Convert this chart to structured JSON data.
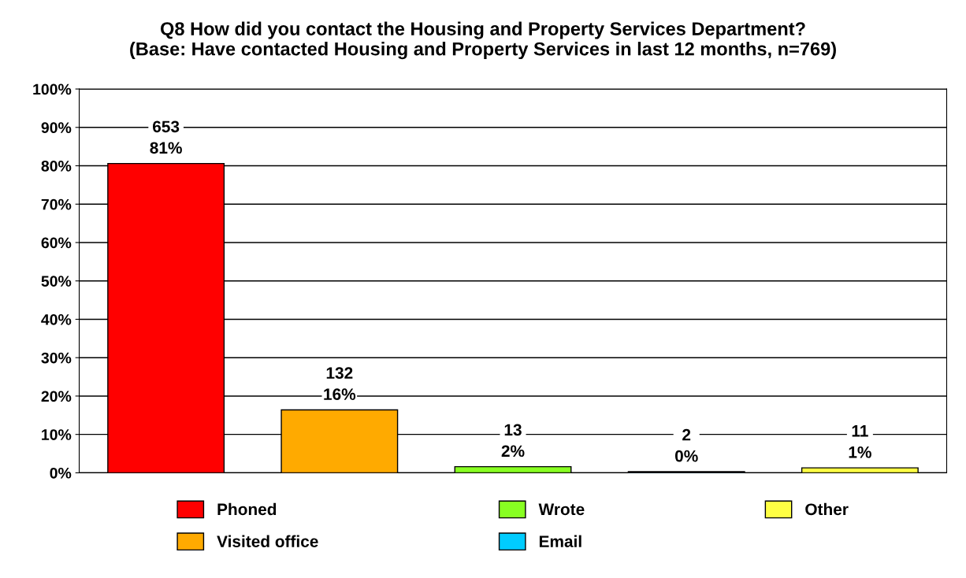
{
  "chart_data": {
    "type": "bar",
    "title": "Q8 How did you contact the Housing and Property Services Department?\n(Base: Have contacted Housing and Property Services in last 12 months, n=769)",
    "categories": [
      null,
      null,
      null,
      null,
      null
    ],
    "series": [
      {
        "name": "Phoned",
        "color": "#ff0000",
        "values": [
          80.6,
          null,
          null,
          null,
          null
        ],
        "value_labels": [
          "653\n81%",
          null,
          null,
          null,
          null
        ]
      },
      {
        "name": "Visited office",
        "color": "#ffaa00",
        "values": [
          null,
          16.4,
          null,
          null,
          null
        ],
        "value_labels": [
          null,
          "132\n16%",
          null,
          null,
          null
        ]
      },
      {
        "name": "Wrote",
        "color": "#88ff22",
        "values": [
          null,
          null,
          1.6,
          null,
          null
        ],
        "value_labels": [
          null,
          null,
          "13\n2%",
          null,
          null
        ]
      },
      {
        "name": "Email",
        "color": "#00ccff",
        "values": [
          null,
          null,
          null,
          0.3,
          null
        ],
        "value_labels": [
          null,
          null,
          null,
          "2\n0%",
          null
        ]
      },
      {
        "name": "Other",
        "color": "#ffff44",
        "values": [
          null,
          null,
          null,
          null,
          1.3
        ],
        "value_labels": [
          null,
          null,
          null,
          null,
          "11\n1%"
        ]
      }
    ],
    "ylim": [
      0,
      100
    ],
    "yticks": [
      {
        "value": 0,
        "label": "0%"
      },
      {
        "value": 10,
        "label": "10%"
      },
      {
        "value": 20,
        "label": "20%"
      },
      {
        "value": 30,
        "label": "30%"
      },
      {
        "value": 40,
        "label": "40%"
      },
      {
        "value": 50,
        "label": "50%"
      },
      {
        "value": 60,
        "label": "60%"
      },
      {
        "value": 70,
        "label": "70%"
      },
      {
        "value": 80,
        "label": "80%"
      },
      {
        "value": 90,
        "label": "90%"
      },
      {
        "value": 100,
        "label": "100%"
      }
    ],
    "grid": "y",
    "legend": "bottom"
  }
}
